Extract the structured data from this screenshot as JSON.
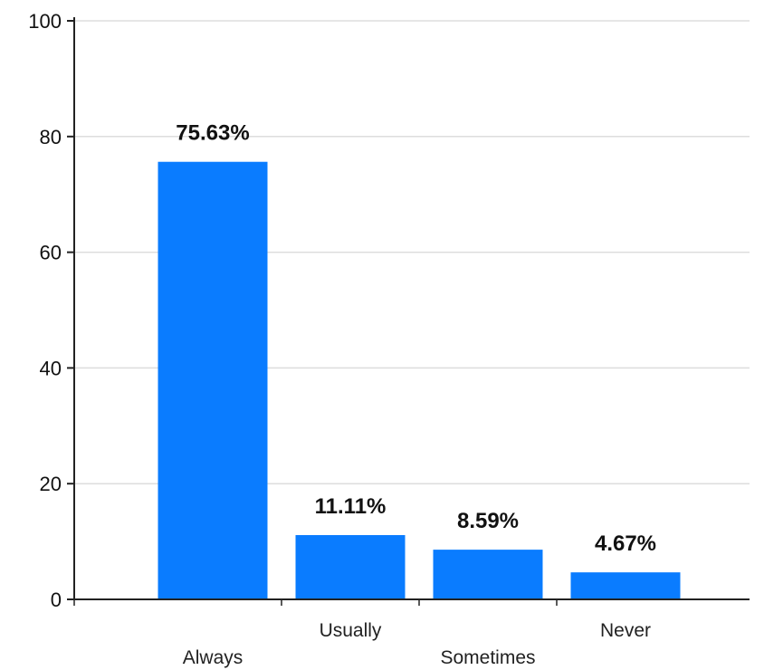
{
  "chart_data": {
    "type": "bar",
    "categories": [
      "Always",
      "Usually",
      "Sometimes",
      "Never"
    ],
    "values": [
      75.63,
      11.11,
      8.59,
      4.67
    ],
    "data_labels": [
      "75.63%",
      "11.11%",
      "8.59%",
      "4.67%"
    ],
    "title": "",
    "xlabel": "",
    "ylabel": "",
    "ylim": [
      0,
      100
    ],
    "yticks": [
      0,
      20,
      40,
      60,
      80,
      100
    ],
    "ytick_labels": [
      "0",
      "20",
      "40",
      "60",
      "80",
      "100"
    ],
    "grid": true,
    "bar_color": "#0a7cff",
    "grid_color": "#dddddd",
    "axis_color": "#222222"
  }
}
